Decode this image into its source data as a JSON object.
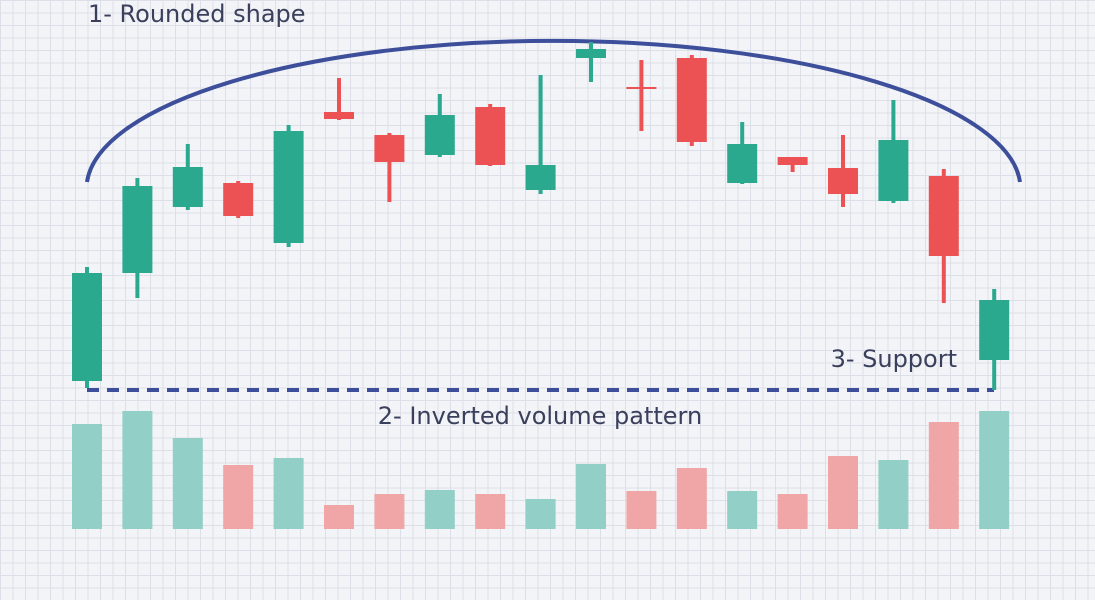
{
  "chart_data": [
    {
      "type": "candlestick",
      "annotations": [
        "1- Rounded shape",
        "3- Support"
      ],
      "open": [
        19,
        127,
        193,
        217,
        157,
        288,
        265,
        245,
        293,
        210,
        342,
        313,
        342,
        217,
        243,
        232,
        199,
        224,
        40
      ],
      "high": [
        133,
        222,
        256,
        219,
        275,
        322,
        267,
        306,
        296,
        325,
        358,
        340,
        345,
        278,
        243,
        265,
        300,
        231,
        111
      ],
      "low": [
        12,
        102,
        190,
        182,
        153,
        280,
        198,
        243,
        234,
        206,
        318,
        269,
        254,
        216,
        228,
        193,
        197,
        97,
        10
      ],
      "close": [
        127,
        214,
        233,
        184,
        269,
        281,
        238,
        285,
        235,
        235,
        351,
        311,
        258,
        256,
        235,
        206,
        260,
        144,
        100
      ],
      "up_color": "#2ba98f",
      "down_color": "#ec5253",
      "ylim": [
        0,
        400
      ]
    },
    {
      "type": "bar",
      "annotations": [
        "2- Inverted volume pattern"
      ],
      "values": [
        105,
        118,
        91,
        64,
        71,
        24,
        35,
        39,
        35,
        30,
        65,
        38,
        61,
        38,
        35,
        73,
        69,
        107,
        118
      ],
      "up_color": "#92cfc6",
      "down_color": "#f0a5a6",
      "ylim": [
        0,
        130
      ]
    }
  ]
}
